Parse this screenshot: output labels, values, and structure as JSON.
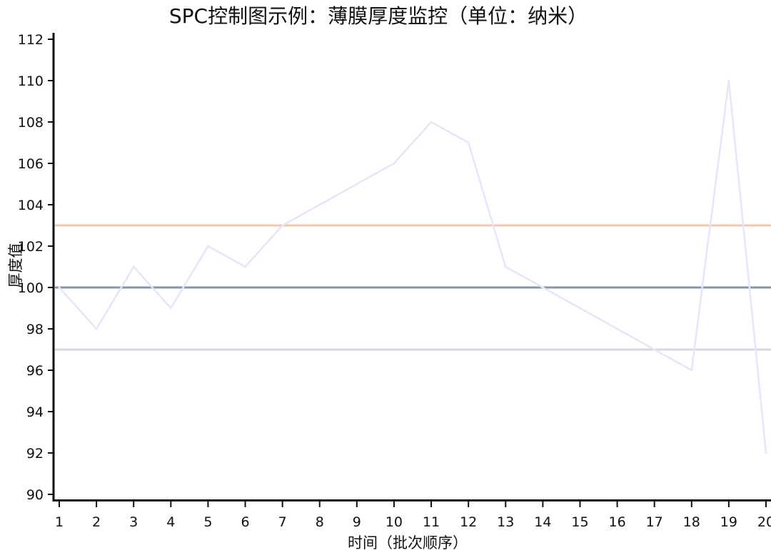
{
  "chart_data": {
    "type": "line",
    "title": "SPC控制图示例：薄膜厚度监控（单位：纳米）",
    "xlabel": "时间（批次顺序）",
    "ylabel": "厚度值",
    "x": [
      1,
      2,
      3,
      4,
      5,
      6,
      7,
      8,
      9,
      10,
      11,
      12,
      13,
      14,
      15,
      16,
      17,
      18,
      19,
      20
    ],
    "xlim": [
      1,
      20
    ],
    "ylim": [
      90,
      112
    ],
    "xticks": [
      "1",
      "2",
      "3",
      "4",
      "5",
      "6",
      "7",
      "8",
      "9",
      "10",
      "11",
      "12",
      "13",
      "14",
      "15",
      "16",
      "17",
      "18",
      "19",
      "20"
    ],
    "yticks": [
      "90",
      "92",
      "94",
      "96",
      "98",
      "100",
      "102",
      "104",
      "106",
      "108",
      "110",
      "112"
    ],
    "grid": false,
    "series": [
      {
        "values": [
          100,
          98,
          101,
          99,
          102,
          101,
          103,
          104,
          105,
          106,
          108,
          107,
          101,
          100,
          99,
          98,
          97,
          96,
          110,
          92
        ],
        "color": "#e4e6fa"
      }
    ],
    "reference_lines": [
      {
        "value": 103,
        "color": "#f7c6a5"
      },
      {
        "value": 100,
        "color": "#8a95a8"
      },
      {
        "value": 97,
        "color": "#d5d8e3"
      }
    ]
  }
}
